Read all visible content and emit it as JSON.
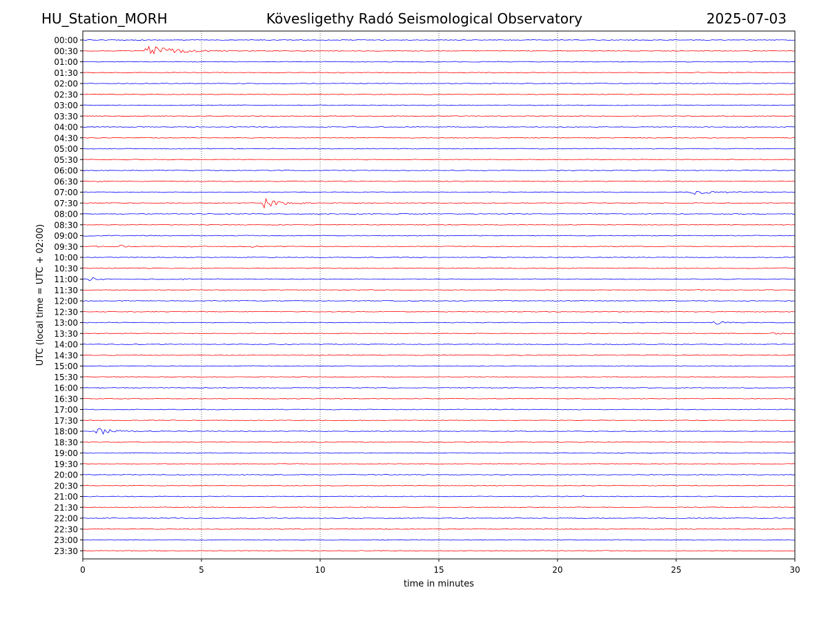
{
  "header": {
    "station": "HU_Station_MORH",
    "observatory": "Kövesligethy Radó Seismological Observatory",
    "date": "2025-07-03"
  },
  "chart_data": {
    "type": "line",
    "subtype": "helicorder",
    "xlabel": "time in minutes",
    "ylabel": "UTC (local time = UTC + 02:00)",
    "xlim": [
      0,
      30
    ],
    "xticks": [
      0,
      5,
      10,
      15,
      20,
      25,
      30
    ],
    "x_grid": "dotted vertical lines at each x tick",
    "trace_colors": [
      "#0000ff",
      "#ff0000"
    ],
    "rows": [
      {
        "label": "00:00",
        "events": []
      },
      {
        "label": "00:30",
        "events": [
          {
            "start": 2.5,
            "duration": 4.5,
            "amplitude": 1.0
          }
        ]
      },
      {
        "label": "01:00",
        "events": []
      },
      {
        "label": "01:30",
        "events": [
          {
            "start": 25.9,
            "duration": 0.3,
            "amplitude": 0.15
          }
        ]
      },
      {
        "label": "02:00",
        "events": []
      },
      {
        "label": "02:30",
        "events": []
      },
      {
        "label": "03:00",
        "events": []
      },
      {
        "label": "03:30",
        "events": []
      },
      {
        "label": "04:00",
        "events": []
      },
      {
        "label": "04:30",
        "events": []
      },
      {
        "label": "05:00",
        "events": []
      },
      {
        "label": "05:30",
        "events": [
          {
            "start": 25.2,
            "duration": 0.5,
            "amplitude": 0.12
          },
          {
            "start": 28.5,
            "duration": 0.4,
            "amplitude": 0.1
          }
        ]
      },
      {
        "label": "06:00",
        "events": [
          {
            "start": 0.0,
            "duration": 0.4,
            "amplitude": 0.12
          }
        ]
      },
      {
        "label": "06:30",
        "events": [
          {
            "start": 0.5,
            "duration": 0.6,
            "amplitude": 0.15
          }
        ]
      },
      {
        "label": "07:00",
        "events": [
          {
            "start": 25.4,
            "duration": 4.0,
            "amplitude": 0.45
          }
        ]
      },
      {
        "label": "07:30",
        "events": [
          {
            "start": 7.5,
            "duration": 2.5,
            "amplitude": 1.2
          }
        ]
      },
      {
        "label": "08:00",
        "events": []
      },
      {
        "label": "08:30",
        "events": []
      },
      {
        "label": "09:00",
        "events": [
          {
            "start": 0.0,
            "duration": 0.8,
            "amplitude": 0.15
          }
        ]
      },
      {
        "label": "09:30",
        "events": [
          {
            "start": 0.4,
            "duration": 0.6,
            "amplitude": 0.2
          },
          {
            "start": 1.5,
            "duration": 1.5,
            "amplitude": 0.3
          },
          {
            "start": 4.4,
            "duration": 0.5,
            "amplitude": 0.2
          },
          {
            "start": 7.1,
            "duration": 1.0,
            "amplitude": 0.2
          }
        ]
      },
      {
        "label": "10:00",
        "events": []
      },
      {
        "label": "10:30",
        "events": [
          {
            "start": 29.4,
            "duration": 0.6,
            "amplitude": 0.25
          }
        ]
      },
      {
        "label": "11:00",
        "events": [
          {
            "start": 0.2,
            "duration": 1.2,
            "amplitude": 0.5
          },
          {
            "start": 4.1,
            "duration": 0.6,
            "amplitude": 0.2
          }
        ]
      },
      {
        "label": "11:30",
        "events": [
          {
            "start": 25.7,
            "duration": 0.6,
            "amplitude": 0.15
          }
        ]
      },
      {
        "label": "12:00",
        "events": []
      },
      {
        "label": "12:30",
        "events": []
      },
      {
        "label": "13:00",
        "events": [
          {
            "start": 26.5,
            "duration": 1.6,
            "amplitude": 0.45
          }
        ]
      },
      {
        "label": "13:30",
        "events": [
          {
            "start": 29.0,
            "duration": 1.0,
            "amplitude": 0.25
          }
        ]
      },
      {
        "label": "14:00",
        "events": []
      },
      {
        "label": "14:30",
        "events": []
      },
      {
        "label": "15:00",
        "events": []
      },
      {
        "label": "15:30",
        "events": []
      },
      {
        "label": "16:00",
        "events": []
      },
      {
        "label": "16:30",
        "events": []
      },
      {
        "label": "17:00",
        "events": []
      },
      {
        "label": "17:30",
        "events": []
      },
      {
        "label": "18:00",
        "events": [
          {
            "start": 0.5,
            "duration": 2.5,
            "amplitude": 0.75
          },
          {
            "start": 4.0,
            "duration": 0.4,
            "amplitude": 0.1
          }
        ]
      },
      {
        "label": "18:30",
        "events": []
      },
      {
        "label": "19:00",
        "events": []
      },
      {
        "label": "19:30",
        "events": []
      },
      {
        "label": "20:00",
        "events": []
      },
      {
        "label": "20:30",
        "events": []
      },
      {
        "label": "21:00",
        "events": [
          {
            "start": 21.0,
            "duration": 0.3,
            "amplitude": 0.3
          }
        ]
      },
      {
        "label": "21:30",
        "events": []
      },
      {
        "label": "22:00",
        "events": []
      },
      {
        "label": "22:30",
        "events": []
      },
      {
        "label": "23:00",
        "events": []
      },
      {
        "label": "23:30",
        "events": []
      }
    ]
  }
}
